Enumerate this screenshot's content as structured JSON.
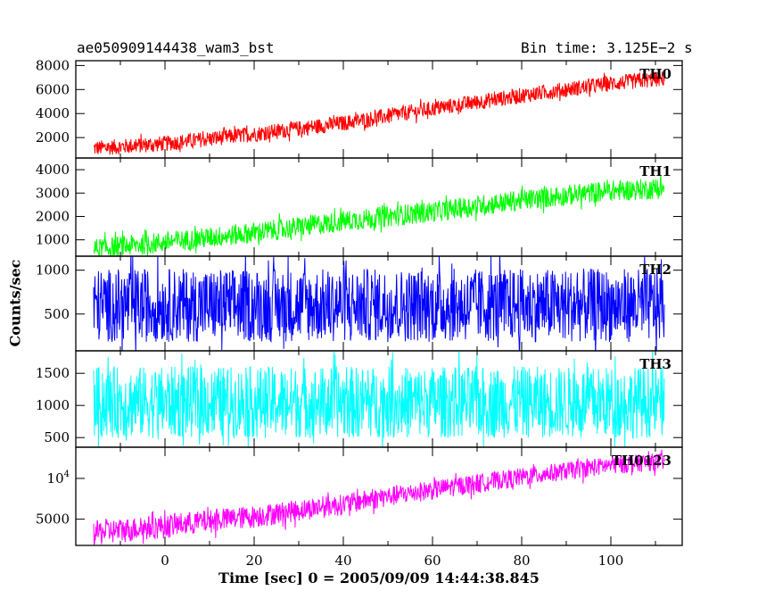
{
  "header": {
    "title": "ae050909144438_wam3_bst",
    "bin_time": "Bin time: 3.125E−2 s"
  },
  "chart_data": {
    "type": "line",
    "ylabel": "Counts/sec",
    "xlabel": "Time [sec] 0 = 2005/09/09 14:44:38.845",
    "xlim": [
      -20,
      116
    ],
    "x_ticks": [
      0,
      20,
      40,
      60,
      80,
      100
    ],
    "x_range_data": [
      -16,
      112
    ],
    "panels": [
      {
        "name": "TH0",
        "color": "#ff0000",
        "ylim": [
          300,
          8400
        ],
        "yscale": "linear",
        "y_ticks": [
          {
            "v": 2000,
            "label": "2000"
          },
          {
            "v": 4000,
            "label": "4000"
          },
          {
            "v": 6000,
            "label": "6000"
          },
          {
            "v": 8000,
            "label": "8000"
          }
        ],
        "trend": [
          [
            -16,
            1100
          ],
          [
            0,
            1500
          ],
          [
            20,
            2300
          ],
          [
            40,
            3200
          ],
          [
            60,
            4400
          ],
          [
            80,
            5500
          ],
          [
            100,
            6500
          ],
          [
            112,
            6900
          ]
        ],
        "spread_half_width": 650
      },
      {
        "name": "TH1",
        "color": "#00ff00",
        "ylim": [
          300,
          4500
        ],
        "yscale": "linear",
        "y_ticks": [
          {
            "v": 1000,
            "label": "1000"
          },
          {
            "v": 2000,
            "label": "2000"
          },
          {
            "v": 3000,
            "label": "3000"
          },
          {
            "v": 4000,
            "label": "4000"
          }
        ],
        "trend": [
          [
            -16,
            600
          ],
          [
            0,
            900
          ],
          [
            20,
            1300
          ],
          [
            40,
            1800
          ],
          [
            60,
            2200
          ],
          [
            80,
            2700
          ],
          [
            100,
            3100
          ],
          [
            112,
            3200
          ]
        ],
        "spread_half_width": 450
      },
      {
        "name": "TH2",
        "color": "#0000ff",
        "ylim": [
          80,
          1160
        ],
        "yscale": "linear",
        "y_ticks": [
          {
            "v": 500,
            "label": "500"
          },
          {
            "v": 1000,
            "label": "1000"
          }
        ],
        "trend": [
          [
            -16,
            600
          ],
          [
            112,
            600
          ]
        ],
        "spread_half_width": 420
      },
      {
        "name": "TH3",
        "color": "#00ffff",
        "ylim": [
          350,
          1850
        ],
        "yscale": "linear",
        "y_ticks": [
          {
            "v": 500,
            "label": "500"
          },
          {
            "v": 1000,
            "label": "1000"
          },
          {
            "v": 1500,
            "label": "1500"
          }
        ],
        "trend": [
          [
            -16,
            1050
          ],
          [
            112,
            1050
          ]
        ],
        "spread_half_width": 560
      },
      {
        "name": "TH0123",
        "color": "#ff00ff",
        "ylim": [
          3200,
          17000
        ],
        "yscale": "log",
        "y_ticks": [
          {
            "v": 5000,
            "label": "5000"
          },
          {
            "v": 10000,
            "label": "10",
            "sup": "4"
          }
        ],
        "trend": [
          [
            -16,
            4000
          ],
          [
            0,
            4500
          ],
          [
            20,
            5300
          ],
          [
            40,
            6500
          ],
          [
            60,
            8300
          ],
          [
            80,
            10300
          ],
          [
            100,
            12600
          ],
          [
            112,
            13500
          ]
        ],
        "spread_half_width": 1400
      }
    ]
  }
}
